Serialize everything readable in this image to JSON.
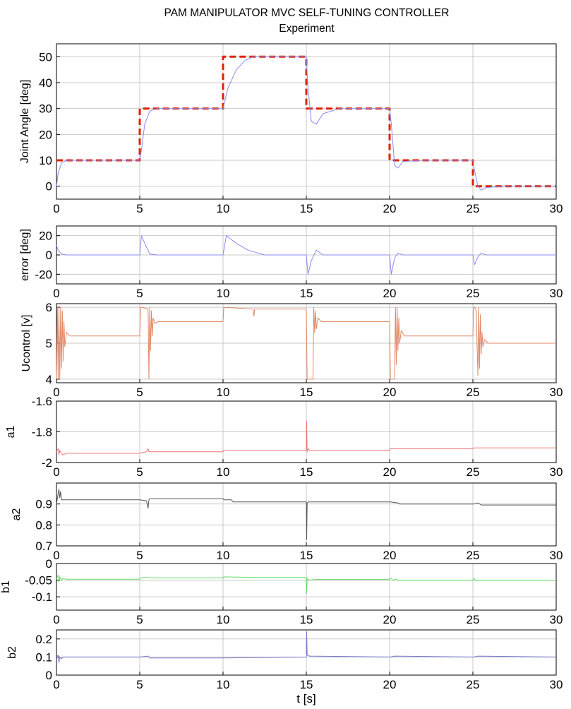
{
  "title": "PAM MANIPULATOR MVC SELF-TUNING CONTROLLER",
  "subtitle": "Experiment",
  "xlabel": "t [s]",
  "colors": {
    "reference": "#dd2200",
    "angle": "#8a8af0",
    "error": "#8a8af0",
    "ucontrol": "#e08866",
    "a1": "#ee7777",
    "a2": "#555555",
    "b1": "#66dd66",
    "b2": "#7777cc",
    "grid": "#c8c8c8"
  },
  "chart_data": [
    {
      "type": "line",
      "id": "joint",
      "ylabel": "Joint Angle [deg]",
      "xlim": [
        0,
        30
      ],
      "ylim": [
        -5,
        55
      ],
      "xticks": [
        0,
        5,
        10,
        15,
        20,
        25,
        30
      ],
      "yticks": [
        0,
        10,
        20,
        30,
        40,
        50
      ],
      "grid": true,
      "series": [
        {
          "role": "reference",
          "style": "dashed",
          "x": [
            0,
            5,
            5,
            10,
            10,
            15,
            15,
            20,
            20,
            25,
            25,
            30
          ],
          "y": [
            10,
            10,
            30,
            30,
            50,
            50,
            30,
            30,
            10,
            10,
            0,
            0
          ]
        },
        {
          "role": "measured",
          "style": "solid",
          "x": [
            0,
            0.1,
            0.3,
            0.6,
            1,
            3,
            5,
            5.1,
            5.3,
            5.6,
            6,
            8,
            10,
            10.3,
            10.8,
            11.3,
            11.8,
            12.2,
            15,
            15.1,
            15.3,
            15.6,
            16,
            17,
            20,
            20.1,
            20.3,
            20.5,
            20.8,
            22,
            25,
            25.1,
            25.3,
            25.5,
            25.8,
            27,
            30
          ],
          "y": [
            0,
            5,
            9,
            10,
            10,
            10,
            10,
            14,
            24,
            29,
            30,
            30,
            30,
            38,
            45,
            48.5,
            50,
            50,
            50,
            38,
            25,
            24,
            28,
            30,
            30,
            24,
            8,
            7,
            9.5,
            10,
            10,
            6,
            0,
            -1.5,
            -0.5,
            0,
            0
          ]
        }
      ]
    },
    {
      "type": "line",
      "id": "error",
      "ylabel": "error [deg]",
      "xlim": [
        0,
        30
      ],
      "ylim": [
        -30,
        30
      ],
      "xticks": [
        0,
        5,
        10,
        15,
        20,
        25,
        30
      ],
      "yticks": [
        -20,
        0,
        20
      ],
      "grid": true,
      "series": [
        {
          "role": "error",
          "style": "solid",
          "x": [
            0,
            0.1,
            0.3,
            0.6,
            1,
            5,
            5.1,
            5.3,
            5.6,
            6,
            10,
            10.2,
            10.8,
            11.5,
            12.5,
            15,
            15.1,
            15.3,
            15.6,
            16,
            20,
            20.1,
            20.3,
            20.5,
            20.8,
            25,
            25.1,
            25.3,
            25.5,
            25.8,
            30
          ],
          "y": [
            10,
            5,
            1,
            0,
            0,
            0,
            20,
            12,
            1,
            0,
            0,
            20,
            12,
            5,
            0,
            0,
            -20,
            -6,
            5,
            0,
            0,
            -20,
            -3,
            2,
            0,
            0,
            -10,
            -2,
            2,
            0,
            0
          ]
        }
      ]
    },
    {
      "type": "line",
      "id": "ucontrol",
      "ylabel": "Ucontrol [v]",
      "xlim": [
        0,
        30
      ],
      "ylim": [
        3.9,
        6.1
      ],
      "xticks": [
        0,
        5,
        10,
        15,
        20,
        25,
        30
      ],
      "yticks": [
        4,
        5,
        6
      ],
      "grid": true,
      "series": [
        {
          "role": "ucontrol",
          "style": "solid",
          "x": [
            0,
            0.05,
            0.1,
            0.15,
            0.2,
            0.25,
            0.3,
            0.35,
            0.4,
            0.45,
            0.5,
            0.6,
            0.8,
            5,
            5.05,
            5.1,
            5.5,
            5.55,
            5.6,
            5.65,
            5.7,
            5.75,
            5.8,
            5.9,
            6.1,
            10,
            10.05,
            11.8,
            11.85,
            11.9,
            15,
            15.05,
            15.1,
            15.4,
            15.45,
            15.5,
            15.55,
            15.6,
            15.7,
            15.9,
            20,
            20.05,
            20.1,
            20.3,
            20.35,
            20.4,
            20.45,
            20.5,
            20.55,
            20.6,
            20.7,
            20.9,
            25,
            25.05,
            25.1,
            25.2,
            25.3,
            25.35,
            25.4,
            25.45,
            25.5,
            25.55,
            25.6,
            25.7,
            25.9,
            30
          ],
          "y": [
            4,
            6,
            4,
            6,
            4,
            6,
            4.3,
            5.9,
            4.5,
            5.6,
            4.9,
            5.3,
            5.2,
            5.2,
            6,
            6,
            5.95,
            4,
            6,
            4.8,
            5.9,
            5.2,
            5.7,
            5.55,
            5.6,
            5.6,
            6,
            5.95,
            5.75,
            5.95,
            5.95,
            4,
            4,
            4,
            6,
            5.3,
            5.9,
            5.4,
            5.7,
            5.6,
            5.6,
            4,
            4,
            4,
            6,
            4.4,
            6,
            4.8,
            5.7,
            5,
            5.35,
            5.2,
            5.2,
            6,
            6,
            5.9,
            4.1,
            6,
            4.3,
            5.8,
            4.7,
            5.3,
            4.9,
            5.1,
            5,
            5
          ]
        }
      ]
    },
    {
      "type": "line",
      "id": "a1",
      "ylabel": "a1",
      "xlim": [
        0,
        30
      ],
      "ylim": [
        -2,
        -1.6
      ],
      "xticks": [
        0,
        5,
        10,
        15,
        20,
        25,
        30
      ],
      "yticks": [
        -2,
        -1.8,
        -1.6
      ],
      "grid": true,
      "series": [
        {
          "role": "a1",
          "style": "solid",
          "x": [
            0,
            0.1,
            0.15,
            0.2,
            0.3,
            0.4,
            0.6,
            5,
            5.4,
            5.5,
            5.55,
            5.6,
            10,
            10.05,
            10.5,
            15,
            15.02,
            15.05,
            15.1,
            15.2,
            20,
            20.05,
            20.5,
            25,
            25.05,
            25.5,
            30
          ],
          "y": [
            -1.93,
            -1.91,
            -1.95,
            -1.92,
            -1.94,
            -1.95,
            -1.94,
            -1.94,
            -1.93,
            -1.91,
            -1.93,
            -1.93,
            -1.93,
            -1.92,
            -1.92,
            -1.92,
            -1.73,
            -1.93,
            -1.91,
            -1.92,
            -1.92,
            -1.91,
            -1.91,
            -1.91,
            -1.905,
            -1.905,
            -1.905
          ]
        }
      ]
    },
    {
      "type": "line",
      "id": "a2",
      "ylabel": "a2",
      "xlim": [
        0,
        30
      ],
      "ylim": [
        0.7,
        1.0
      ],
      "xticks": [
        0,
        5,
        10,
        15,
        20,
        25,
        30
      ],
      "yticks": [
        0.7,
        0.8,
        0.9
      ],
      "grid": true,
      "series": [
        {
          "role": "a2",
          "style": "solid",
          "x": [
            0,
            0.1,
            0.15,
            0.2,
            0.25,
            0.3,
            0.4,
            0.6,
            5,
            5.4,
            5.5,
            5.55,
            5.6,
            10,
            10.05,
            10.5,
            10.6,
            15,
            15.02,
            15.05,
            15.1,
            20,
            20.05,
            20.5,
            20.6,
            25,
            25.05,
            25.3,
            25.5,
            30
          ],
          "y": [
            0.9,
            0.95,
            0.97,
            0.93,
            0.96,
            0.92,
            0.92,
            0.92,
            0.92,
            0.915,
            0.88,
            0.92,
            0.925,
            0.925,
            0.92,
            0.92,
            0.91,
            0.91,
            0.73,
            0.905,
            0.91,
            0.91,
            0.91,
            0.905,
            0.9,
            0.9,
            0.9,
            0.905,
            0.895,
            0.895
          ]
        }
      ]
    },
    {
      "type": "line",
      "id": "b1",
      "ylabel": "b1",
      "xlim": [
        0,
        30
      ],
      "ylim": [
        -0.14,
        0
      ],
      "xticks": [
        0,
        5,
        10,
        15,
        20,
        25,
        30
      ],
      "yticks": [
        -0.1,
        -0.05,
        0
      ],
      "grid": true,
      "series": [
        {
          "role": "b1",
          "style": "solid",
          "x": [
            0,
            0.1,
            0.15,
            0.2,
            0.3,
            0.4,
            0.6,
            5,
            5.1,
            5.5,
            5.6,
            10,
            10.05,
            12,
            15,
            15.02,
            15.05,
            15.2,
            15.5,
            20,
            20.05,
            20.2,
            20.4,
            20.5,
            25,
            25.05,
            25.2,
            25.4,
            30
          ],
          "y": [
            -0.045,
            -0.035,
            -0.055,
            -0.04,
            -0.05,
            -0.045,
            -0.047,
            -0.047,
            -0.042,
            -0.042,
            -0.043,
            -0.043,
            -0.04,
            -0.042,
            -0.042,
            -0.09,
            -0.045,
            -0.05,
            -0.048,
            -0.048,
            -0.043,
            -0.05,
            -0.047,
            -0.05,
            -0.05,
            -0.045,
            -0.052,
            -0.05,
            -0.05
          ]
        }
      ]
    },
    {
      "type": "line",
      "id": "b2",
      "ylabel": "b2",
      "xlim": [
        0,
        30
      ],
      "ylim": [
        0,
        0.25
      ],
      "xticks": [
        0,
        5,
        10,
        15,
        20,
        25,
        30
      ],
      "yticks": [
        0,
        0.1,
        0.2
      ],
      "grid": true,
      "series": [
        {
          "role": "b2",
          "style": "solid",
          "x": [
            0,
            0.1,
            0.15,
            0.2,
            0.3,
            0.4,
            0.6,
            5,
            5.5,
            5.6,
            10,
            15,
            15.02,
            15.05,
            15.2,
            20,
            20.05,
            20.3,
            25,
            25.05,
            25.3,
            30
          ],
          "y": [
            0.1,
            0.11,
            0.07,
            0.1,
            0.09,
            0.1,
            0.1,
            0.1,
            0.105,
            0.095,
            0.095,
            0.1,
            0.24,
            0.11,
            0.105,
            0.1,
            0.1,
            0.105,
            0.1,
            0.1,
            0.105,
            0.1
          ]
        }
      ]
    }
  ]
}
